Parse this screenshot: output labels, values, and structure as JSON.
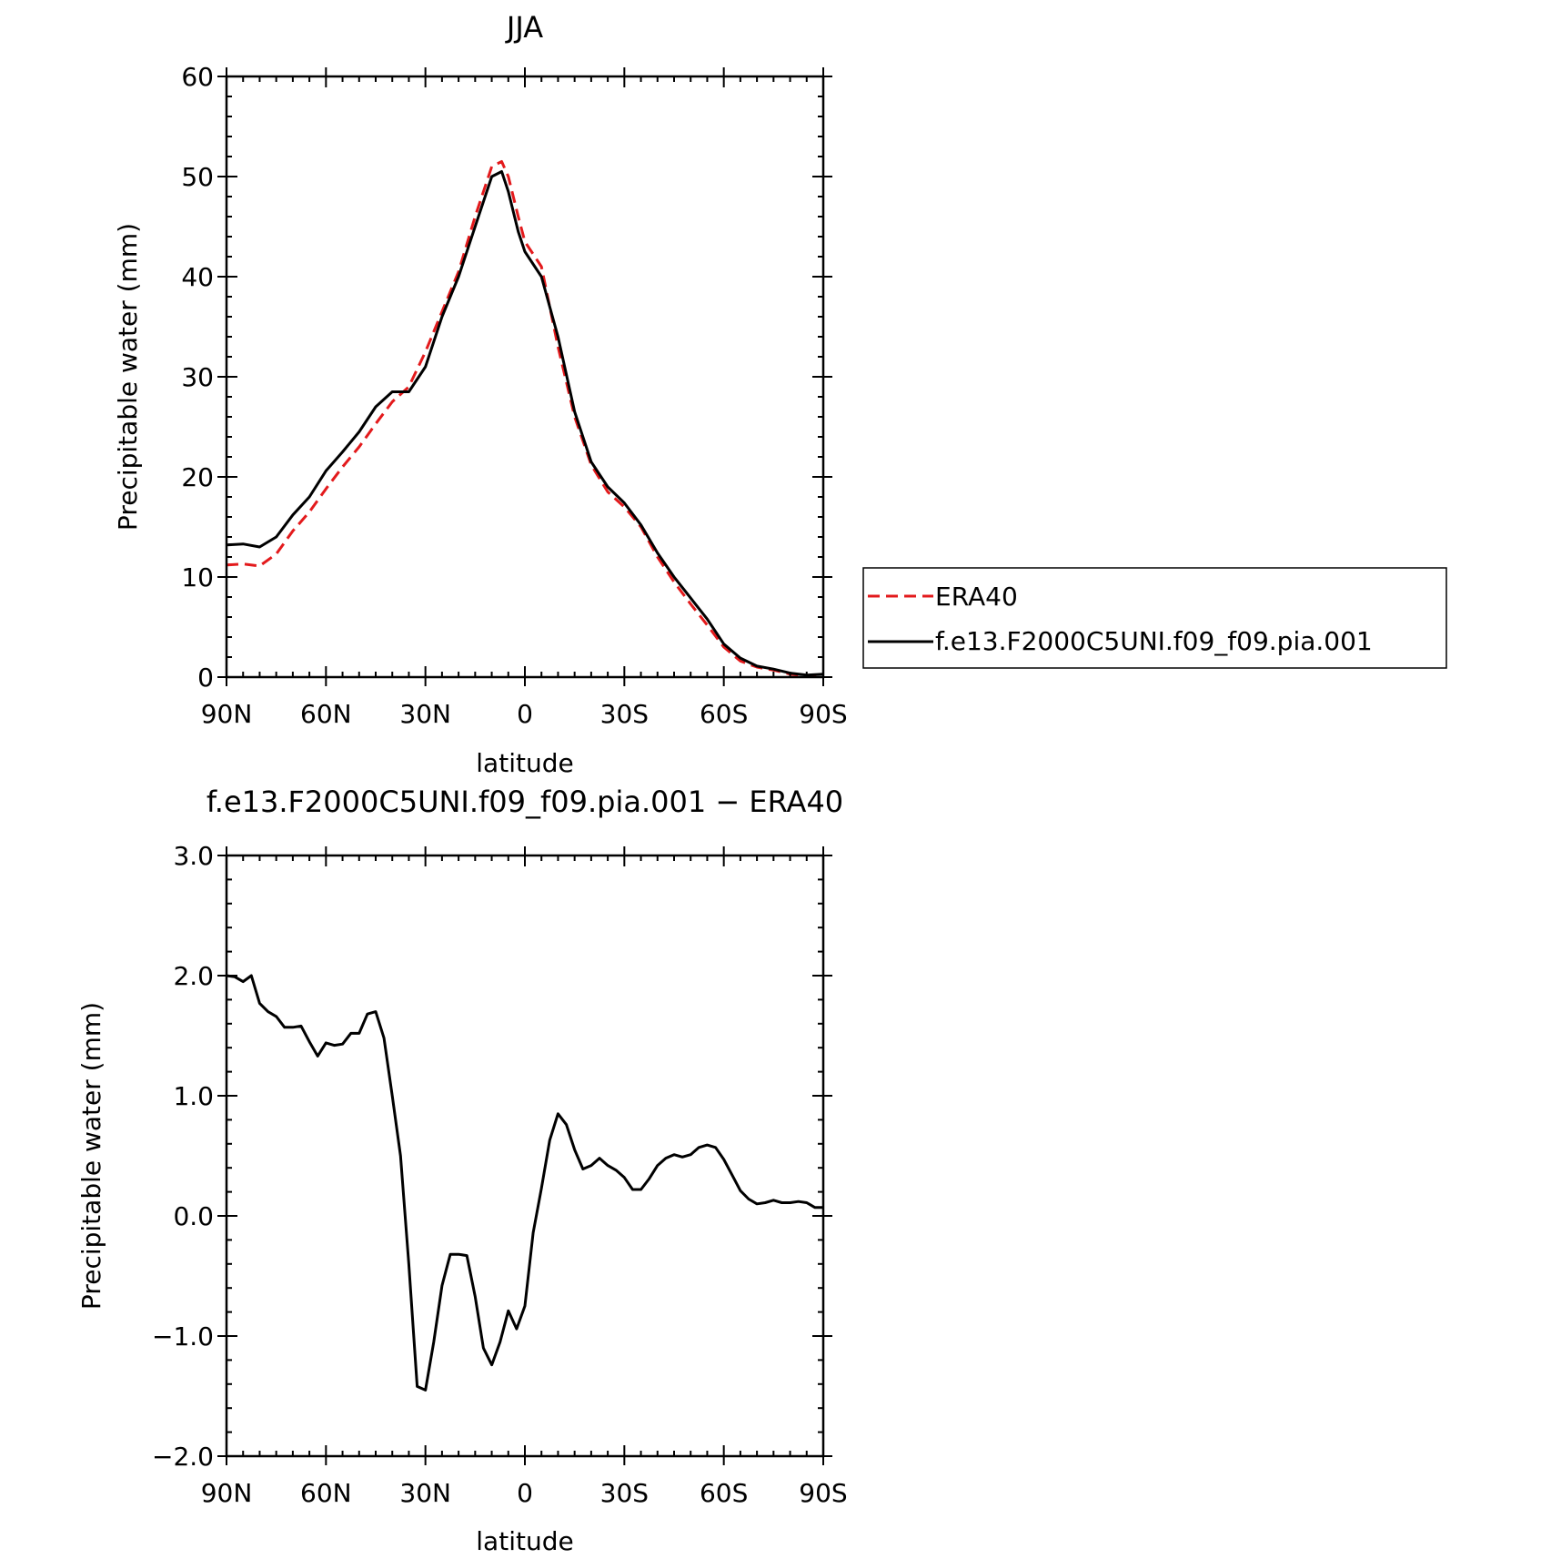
{
  "colors": {
    "era40": "#e31a1c",
    "model": "#000000"
  },
  "chart_data": [
    {
      "type": "line",
      "title": "JJA",
      "xlabel": "latitude",
      "ylabel": "Precipitable water (mm)",
      "ylim": [
        0,
        60
      ],
      "xlim": [
        90,
        -90
      ],
      "yticks": [
        0,
        10,
        20,
        30,
        40,
        50,
        60
      ],
      "ytick_labels": [
        "0",
        "10",
        "20",
        "30",
        "40",
        "50",
        "60"
      ],
      "xticks": [
        90,
        60,
        30,
        0,
        -30,
        -60,
        -90
      ],
      "xtick_labels": [
        "90N",
        "60N",
        "30N",
        "0",
        "30S",
        "60S",
        "90S"
      ],
      "legend": {
        "position": "right",
        "entries": [
          "ERA40",
          "f.e13.F2000C5UNI.f09_f09.pia.001"
        ]
      },
      "series": [
        {
          "name": "ERA40",
          "style": "dashed",
          "x": [
            90,
            85,
            80,
            75,
            70,
            65,
            60,
            55,
            50,
            45,
            40,
            35,
            30,
            25,
            20,
            15,
            10,
            7,
            5,
            2,
            0,
            -5,
            -10,
            -15,
            -20,
            -25,
            -30,
            -35,
            -40,
            -45,
            -50,
            -55,
            -60,
            -65,
            -70,
            -75,
            -80,
            -85,
            -90
          ],
          "values": [
            11.2,
            11.3,
            11.1,
            12.3,
            14.6,
            16.5,
            18.8,
            21.0,
            23.0,
            25.3,
            27.5,
            29.0,
            32.5,
            36.5,
            40.5,
            46.0,
            51.0,
            51.5,
            50.0,
            46.0,
            43.5,
            41.0,
            33.0,
            26.0,
            21.2,
            18.5,
            17.0,
            15.0,
            12.0,
            9.5,
            7.3,
            5.2,
            3.0,
            1.6,
            1.0,
            0.7,
            0.3,
            0.1,
            0.2
          ]
        },
        {
          "name": "f.e13.F2000C5UNI.f09_f09.pia.001",
          "style": "solid",
          "x": [
            90,
            85,
            80,
            75,
            70,
            65,
            60,
            55,
            50,
            45,
            40,
            35,
            30,
            25,
            20,
            15,
            10,
            7,
            5,
            2,
            0,
            -5,
            -10,
            -15,
            -20,
            -25,
            -30,
            -35,
            -40,
            -45,
            -50,
            -55,
            -60,
            -65,
            -70,
            -75,
            -80,
            -85,
            -90
          ],
          "values": [
            13.2,
            13.3,
            13.0,
            14.0,
            16.2,
            18.0,
            20.6,
            22.5,
            24.5,
            27.0,
            28.5,
            28.5,
            31.0,
            36.0,
            40.0,
            45.0,
            50.0,
            50.5,
            48.5,
            44.5,
            42.5,
            40.0,
            34.0,
            26.5,
            21.5,
            19.0,
            17.4,
            15.2,
            12.4,
            10.0,
            7.9,
            5.8,
            3.3,
            1.9,
            1.1,
            0.8,
            0.4,
            0.2,
            0.3
          ]
        }
      ]
    },
    {
      "type": "line",
      "title": "f.e13.F2000C5UNI.f09_f09.pia.001 − ERA40",
      "xlabel": "latitude",
      "ylabel": "Precipitable water (mm)",
      "ylim": [
        -2.0,
        3.0
      ],
      "xlim": [
        90,
        -90
      ],
      "yticks": [
        -2.0,
        -1.0,
        0.0,
        1.0,
        2.0,
        3.0
      ],
      "ytick_labels": [
        "−2.0",
        "−1.0",
        "0.0",
        "1.0",
        "2.0",
        "3.0"
      ],
      "xticks": [
        90,
        60,
        30,
        0,
        -30,
        -60,
        -90
      ],
      "xtick_labels": [
        "90N",
        "60N",
        "30N",
        "0",
        "30S",
        "60S",
        "90S"
      ],
      "series": [
        {
          "style": "solid",
          "x": [
            90,
            87.5,
            85,
            82.5,
            80,
            77.5,
            75,
            72.5,
            70,
            67.5,
            65,
            62.5,
            60,
            57.5,
            55,
            52.5,
            50,
            47.5,
            45,
            42.5,
            40,
            37.5,
            35,
            32.5,
            30,
            27.5,
            25,
            22.5,
            20,
            17.5,
            15,
            12.5,
            10,
            7.5,
            5,
            2.5,
            0,
            -2.5,
            -5,
            -7.5,
            -10,
            -12.5,
            -15,
            -17.5,
            -20,
            -22.5,
            -25,
            -27.5,
            -30,
            -32.5,
            -35,
            -37.5,
            -40,
            -42.5,
            -45,
            -47.5,
            -50,
            -52.5,
            -55,
            -57.5,
            -60,
            -62.5,
            -65,
            -67.5,
            -70,
            -72.5,
            -75,
            -77.5,
            -80,
            -82.5,
            -85,
            -87.5,
            -90
          ],
          "values": [
            2.0,
            1.99,
            1.95,
            2.0,
            1.77,
            1.7,
            1.66,
            1.57,
            1.57,
            1.58,
            1.45,
            1.33,
            1.44,
            1.42,
            1.43,
            1.52,
            1.52,
            1.68,
            1.7,
            1.48,
            1.0,
            0.5,
            -0.4,
            -1.42,
            -1.45,
            -1.05,
            -0.58,
            -0.32,
            -0.32,
            -0.33,
            -0.67,
            -1.1,
            -1.24,
            -1.05,
            -0.79,
            -0.94,
            -0.75,
            -0.14,
            0.23,
            0.63,
            0.85,
            0.76,
            0.55,
            0.39,
            0.42,
            0.48,
            0.42,
            0.38,
            0.32,
            0.22,
            0.22,
            0.31,
            0.42,
            0.48,
            0.51,
            0.49,
            0.51,
            0.57,
            0.59,
            0.57,
            0.47,
            0.34,
            0.21,
            0.14,
            0.1,
            0.11,
            0.13,
            0.11,
            0.11,
            0.12,
            0.11,
            0.07,
            0.07
          ]
        }
      ]
    }
  ]
}
